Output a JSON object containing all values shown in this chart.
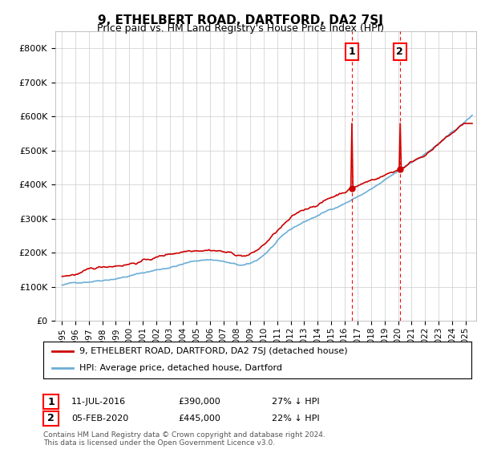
{
  "title": "9, ETHELBERT ROAD, DARTFORD, DA2 7SJ",
  "subtitle": "Price paid vs. HM Land Registry's House Price Index (HPI)",
  "hpi_color": "#6baed6",
  "price_color": "#cc0000",
  "transaction1": {
    "date": "11-JUL-2016",
    "price": 390000,
    "pct": "27%",
    "dir": "↓"
  },
  "transaction2": {
    "date": "05-FEB-2020",
    "price": 445000,
    "pct": "22%",
    "dir": "↓"
  },
  "ylim": [
    0,
    850000
  ],
  "yticks": [
    0,
    100000,
    200000,
    300000,
    400000,
    500000,
    600000,
    700000,
    800000
  ],
  "footer": "Contains HM Land Registry data © Crown copyright and database right 2024.\nThis data is licensed under the Open Government Licence v3.0.",
  "legend_label1": "9, ETHELBERT ROAD, DARTFORD, DA2 7SJ (detached house)",
  "legend_label2": "HPI: Average price, detached house, Dartford",
  "background_color": "#ffffff",
  "grid_color": "#cccccc"
}
